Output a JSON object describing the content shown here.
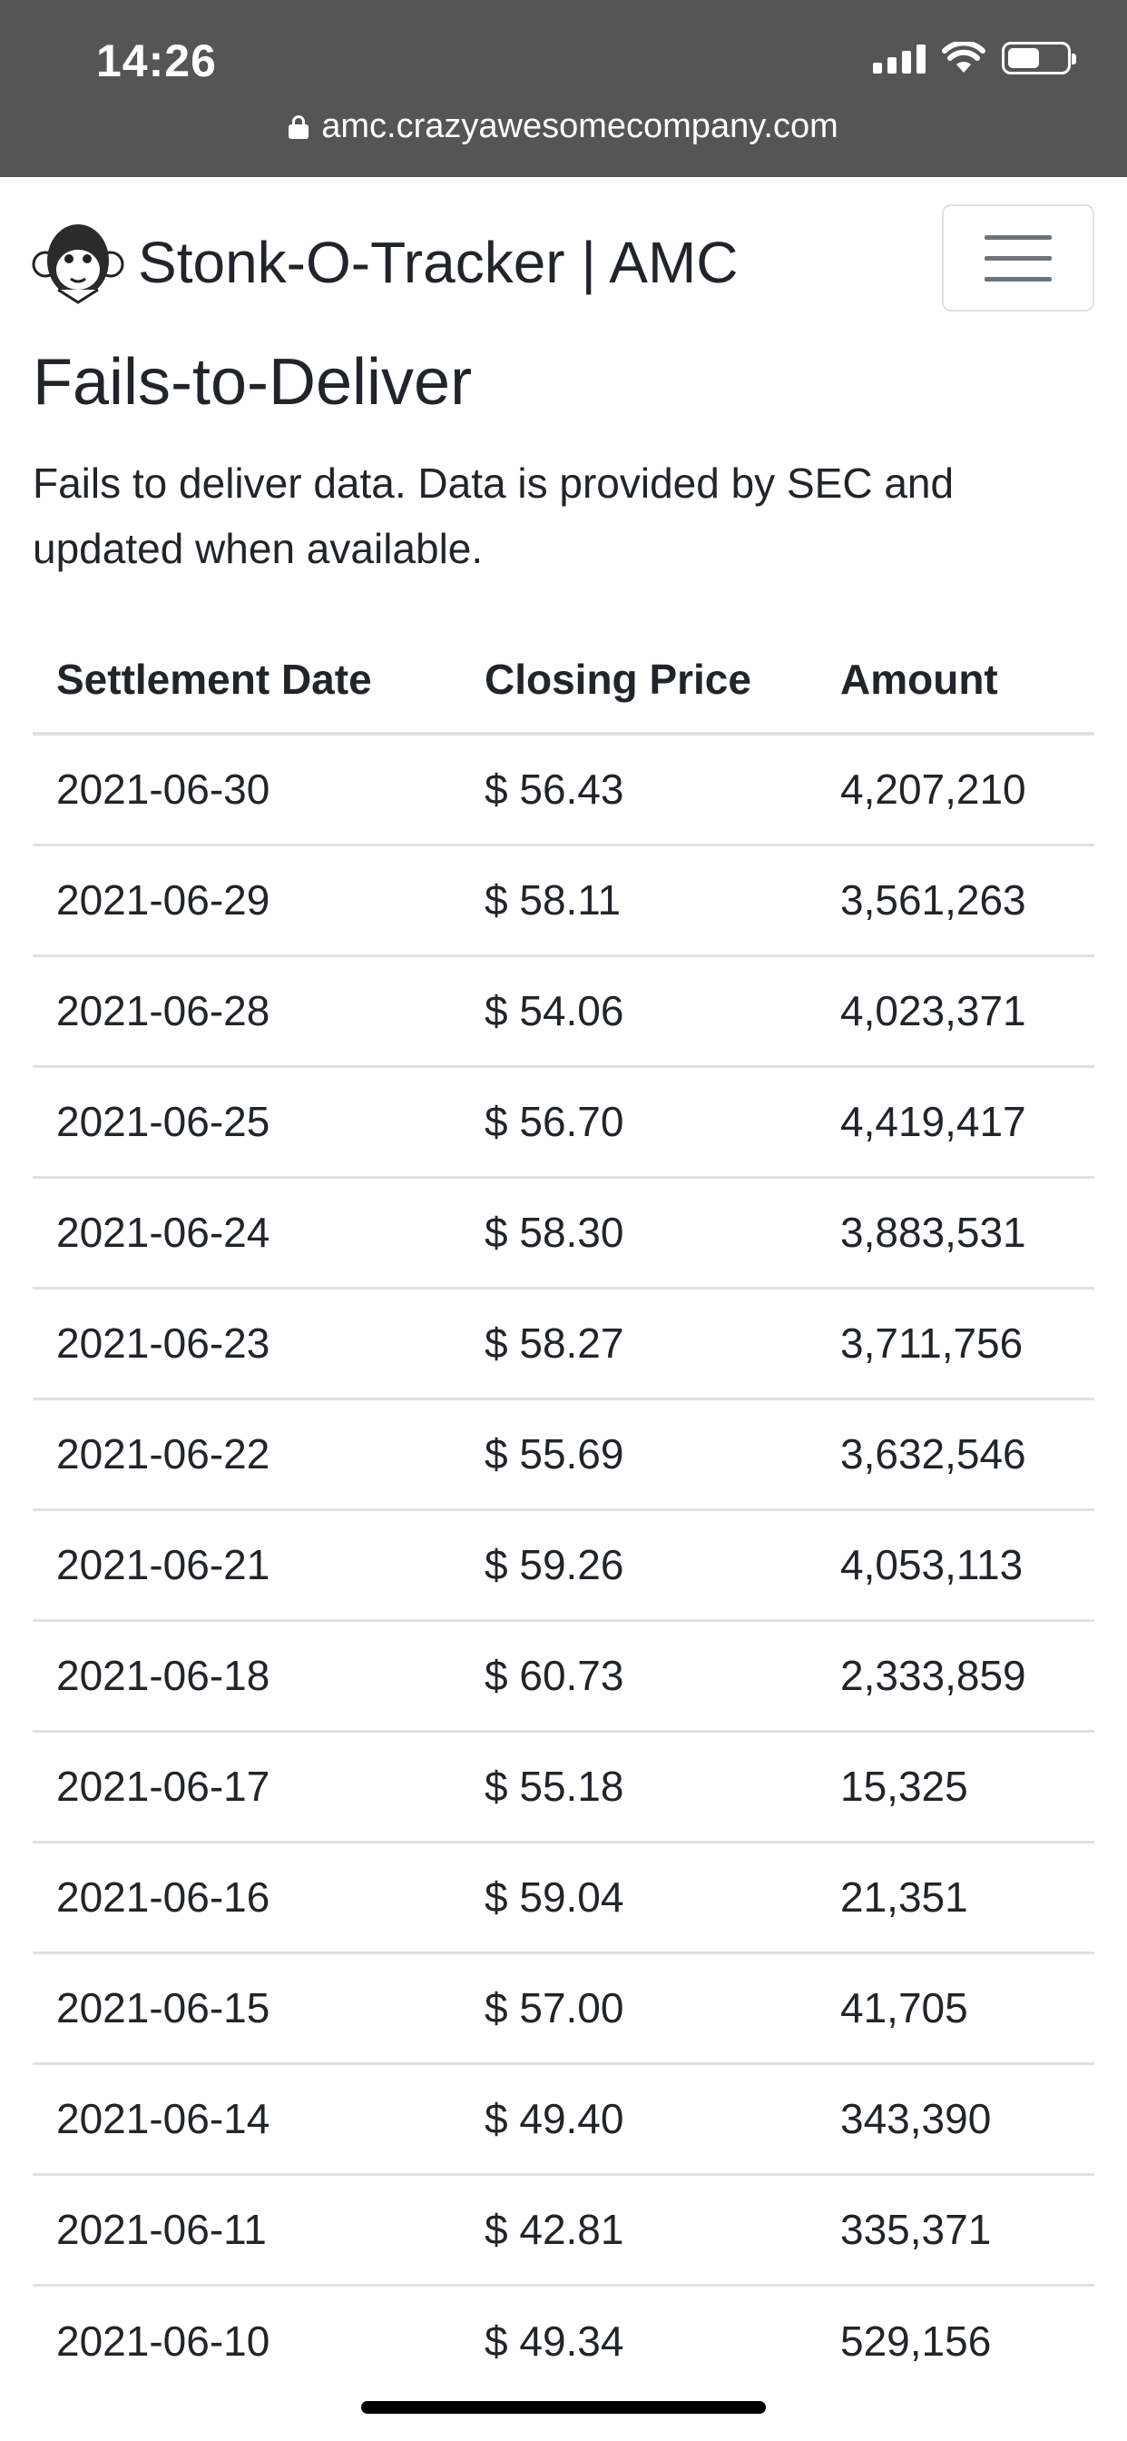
{
  "status_bar": {
    "time": "14:26",
    "icons": [
      "signal-icon",
      "wifi-icon",
      "battery-icon"
    ]
  },
  "browser": {
    "url": "amc.crazyawesomecompany.com"
  },
  "navbar": {
    "brand": "Stonk-O-Tracker | AMC",
    "logo_icon": "monkey-logo",
    "menu_icon": "hamburger-menu-icon"
  },
  "main": {
    "title": "Fails-to-Deliver",
    "description": "Fails to deliver data. Data is provided by SEC and updated when available."
  },
  "table": {
    "headers": [
      "Settlement Date",
      "Closing Price",
      "Amount"
    ],
    "rows": [
      {
        "date": "2021-06-30",
        "price": "$ 56.43",
        "amount": "4,207,210"
      },
      {
        "date": "2021-06-29",
        "price": "$ 58.11",
        "amount": "3,561,263"
      },
      {
        "date": "2021-06-28",
        "price": "$ 54.06",
        "amount": "4,023,371"
      },
      {
        "date": "2021-06-25",
        "price": "$ 56.70",
        "amount": "4,419,417"
      },
      {
        "date": "2021-06-24",
        "price": "$ 58.30",
        "amount": "3,883,531"
      },
      {
        "date": "2021-06-23",
        "price": "$ 58.27",
        "amount": "3,711,756"
      },
      {
        "date": "2021-06-22",
        "price": "$ 55.69",
        "amount": "3,632,546"
      },
      {
        "date": "2021-06-21",
        "price": "$ 59.26",
        "amount": "4,053,113"
      },
      {
        "date": "2021-06-18",
        "price": "$ 60.73",
        "amount": "2,333,859"
      },
      {
        "date": "2021-06-17",
        "price": "$ 55.18",
        "amount": "15,325"
      },
      {
        "date": "2021-06-16",
        "price": "$ 59.04",
        "amount": "21,351"
      },
      {
        "date": "2021-06-15",
        "price": "$ 57.00",
        "amount": "41,705"
      },
      {
        "date": "2021-06-14",
        "price": "$ 49.40",
        "amount": "343,390"
      },
      {
        "date": "2021-06-11",
        "price": "$ 42.81",
        "amount": "335,371"
      },
      {
        "date": "2021-06-10",
        "price": "$ 49.34",
        "amount": "529,156"
      }
    ]
  }
}
